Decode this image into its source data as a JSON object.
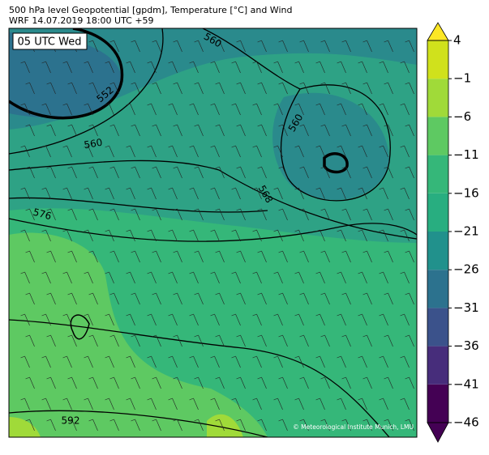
{
  "header": {
    "title": "500 hPa level Geopotential [gpdm], Temperature [°C] and Wind",
    "subtitle": "WRF 14.07.2019 18:00 UTC +59"
  },
  "map": {
    "time_label": "05 UTC Wed",
    "contour_labels": [
      "552",
      "560",
      "560",
      "560",
      "576",
      "568",
      "592"
    ],
    "copyright": "© Meteorological Institute Munich, LMU"
  },
  "colorbar": {
    "ticks": [
      {
        "value": -46,
        "label": "−46"
      },
      {
        "value": -41,
        "label": "−41"
      },
      {
        "value": -36,
        "label": "−36"
      },
      {
        "value": -31,
        "label": "−31"
      },
      {
        "value": -26,
        "label": "−26"
      },
      {
        "value": -21,
        "label": "−21"
      },
      {
        "value": -16,
        "label": "−16"
      },
      {
        "value": -11,
        "label": "−11"
      },
      {
        "value": -6,
        "label": "−6"
      },
      {
        "value": -1,
        "label": "−1"
      },
      4
    ],
    "colors": [
      "#440154",
      "#472d7b",
      "#3b528b",
      "#2c728e",
      "#21918c",
      "#28ae80",
      "#35b779",
      "#5ec962",
      "#a0da39",
      "#d0e11c"
    ],
    "under_color": "#440154",
    "over_color": "#fde725"
  }
}
